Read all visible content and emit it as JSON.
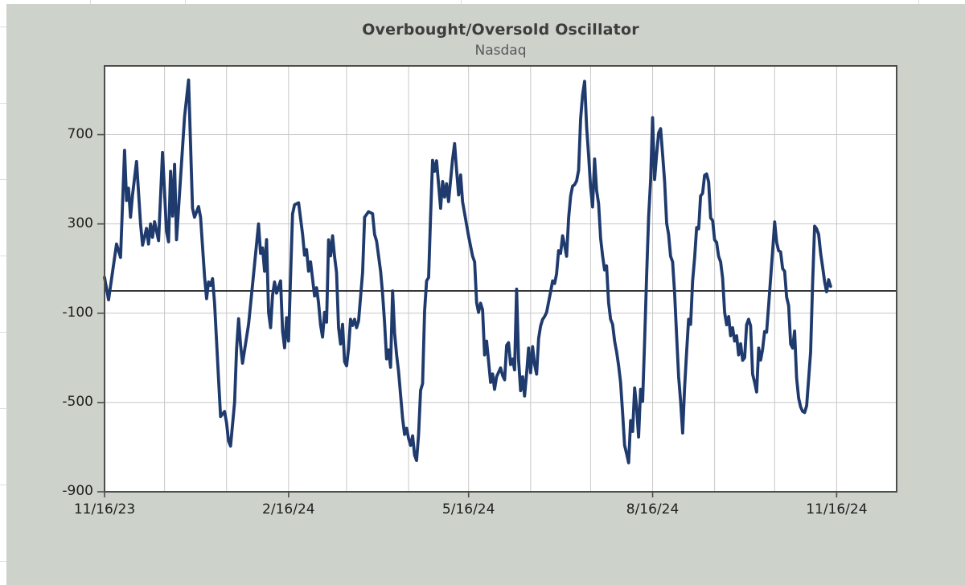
{
  "chart": {
    "background": "#cdd2ca",
    "plot_background": "#ffffff",
    "line_color": "#1f3a6d",
    "grid_color": "#c8c8c8",
    "border_color": "#4d4d4d",
    "zero_line_color": "#1a1a1a",
    "title_color": "#3d3d3d",
    "subtitle_color": "#595959",
    "tick_label_color": "#1f1f1f"
  },
  "chart_data": {
    "type": "line",
    "title": "Overbought/Oversold Oscillator",
    "subtitle": "Nasdaq",
    "legend": "none",
    "grid": "on",
    "x_start_date": "11/16/23",
    "x_ticks": {
      "labels": [
        "11/16/23",
        "2/16/24",
        "5/16/24",
        "8/16/24",
        "11/16/24"
      ],
      "days": [
        0,
        92,
        182,
        274,
        366
      ]
    },
    "x_gridline_days": [
      30,
      61,
      92,
      121,
      152,
      182,
      213,
      243,
      274,
      305,
      335,
      366,
      396
    ],
    "xlim_days": [
      0,
      396
    ],
    "y_ticks": [
      700,
      300,
      -100,
      -500,
      -900
    ],
    "ylim": [
      -900,
      1008
    ],
    "zero_line": 0,
    "series": [
      {
        "name": "Nasdaq",
        "points": [
          [
            0,
            60
          ],
          [
            2,
            -40
          ],
          [
            6,
            210
          ],
          [
            8,
            150
          ],
          [
            10,
            630
          ],
          [
            11,
            405
          ],
          [
            12,
            460
          ],
          [
            13,
            330
          ],
          [
            14,
            430
          ],
          [
            16,
            580
          ],
          [
            18,
            300
          ],
          [
            19,
            205
          ],
          [
            21,
            280
          ],
          [
            22,
            210
          ],
          [
            23,
            300
          ],
          [
            24,
            240
          ],
          [
            25,
            310
          ],
          [
            27,
            225
          ],
          [
            29,
            620
          ],
          [
            31,
            266
          ],
          [
            32,
            220
          ],
          [
            33,
            536
          ],
          [
            34,
            335
          ],
          [
            35,
            567
          ],
          [
            36,
            229
          ],
          [
            40,
            780
          ],
          [
            42,
            945
          ],
          [
            44,
            370
          ],
          [
            45,
            330
          ],
          [
            47,
            378
          ],
          [
            48,
            330
          ],
          [
            50,
            63
          ],
          [
            51,
            -35
          ],
          [
            52,
            40
          ],
          [
            53,
            25
          ],
          [
            54,
            55
          ],
          [
            55,
            -53
          ],
          [
            57,
            -397
          ],
          [
            58,
            -563
          ],
          [
            60,
            -540
          ],
          [
            61,
            -590
          ],
          [
            62,
            -673
          ],
          [
            63,
            -695
          ],
          [
            65,
            -500
          ],
          [
            66,
            -260
          ],
          [
            67,
            -125
          ],
          [
            68,
            -240
          ],
          [
            69,
            -324
          ],
          [
            72,
            -150
          ],
          [
            74,
            30
          ],
          [
            77,
            300
          ],
          [
            78,
            168
          ],
          [
            79,
            193
          ],
          [
            80,
            88
          ],
          [
            81,
            230
          ],
          [
            82,
            -96
          ],
          [
            83,
            -165
          ],
          [
            84,
            -20
          ],
          [
            85,
            40
          ],
          [
            86,
            -10
          ],
          [
            88,
            45
          ],
          [
            89,
            -180
          ],
          [
            90,
            -255
          ],
          [
            91,
            -120
          ],
          [
            92,
            -225
          ],
          [
            94,
            345
          ],
          [
            95,
            386
          ],
          [
            97,
            395
          ],
          [
            99,
            253
          ],
          [
            100,
            160
          ],
          [
            101,
            185
          ],
          [
            102,
            88
          ],
          [
            103,
            130
          ],
          [
            105,
            -23
          ],
          [
            106,
            14
          ],
          [
            107,
            -53
          ],
          [
            108,
            -152
          ],
          [
            109,
            -207
          ],
          [
            110,
            -96
          ],
          [
            111,
            -140
          ],
          [
            112,
            229
          ],
          [
            113,
            157
          ],
          [
            114,
            247
          ],
          [
            115,
            155
          ],
          [
            116,
            82
          ],
          [
            117,
            -164
          ],
          [
            118,
            -238
          ],
          [
            119,
            -150
          ],
          [
            120,
            -317
          ],
          [
            121,
            -336
          ],
          [
            122,
            -256
          ],
          [
            123,
            -127
          ],
          [
            124,
            -155
          ],
          [
            125,
            -127
          ],
          [
            126,
            -165
          ],
          [
            127,
            -135
          ],
          [
            129,
            82
          ],
          [
            130,
            330
          ],
          [
            132,
            355
          ],
          [
            134,
            346
          ],
          [
            135,
            253
          ],
          [
            136,
            223
          ],
          [
            137,
            155
          ],
          [
            138,
            88
          ],
          [
            139,
            -10
          ],
          [
            140,
            -140
          ],
          [
            141,
            -305
          ],
          [
            142,
            -264
          ],
          [
            143,
            -342
          ],
          [
            144,
            0
          ],
          [
            145,
            -189
          ],
          [
            146,
            -287
          ],
          [
            147,
            -360
          ],
          [
            149,
            -569
          ],
          [
            150,
            -643
          ],
          [
            151,
            -615
          ],
          [
            152,
            -661
          ],
          [
            153,
            -692
          ],
          [
            154,
            -649
          ],
          [
            155,
            -735
          ],
          [
            156,
            -760
          ],
          [
            157,
            -645
          ],
          [
            158,
            -446
          ],
          [
            159,
            -415
          ],
          [
            160,
            -90
          ],
          [
            161,
            45
          ],
          [
            162,
            60
          ],
          [
            163,
            330
          ],
          [
            164,
            585
          ],
          [
            165,
            536
          ],
          [
            166,
            583
          ],
          [
            168,
            370
          ],
          [
            169,
            490
          ],
          [
            170,
            420
          ],
          [
            171,
            480
          ],
          [
            172,
            400
          ],
          [
            174,
            590
          ],
          [
            175,
            660
          ],
          [
            176,
            540
          ],
          [
            177,
            430
          ],
          [
            178,
            520
          ],
          [
            179,
            400
          ],
          [
            182,
            245
          ],
          [
            184,
            155
          ],
          [
            185,
            130
          ],
          [
            186,
            -53
          ],
          [
            187,
            -96
          ],
          [
            188,
            -55
          ],
          [
            189,
            -85
          ],
          [
            190,
            -287
          ],
          [
            191,
            -225
          ],
          [
            193,
            -410
          ],
          [
            194,
            -372
          ],
          [
            195,
            -441
          ],
          [
            196,
            -385
          ],
          [
            198,
            -345
          ],
          [
            199,
            -379
          ],
          [
            200,
            -398
          ],
          [
            201,
            -244
          ],
          [
            202,
            -232
          ],
          [
            203,
            -330
          ],
          [
            204,
            -305
          ],
          [
            205,
            -354
          ],
          [
            206,
            8
          ],
          [
            207,
            -311
          ],
          [
            208,
            -447
          ],
          [
            209,
            -385
          ],
          [
            210,
            -471
          ],
          [
            211,
            -373
          ],
          [
            212,
            -256
          ],
          [
            213,
            -367
          ],
          [
            214,
            -250
          ],
          [
            215,
            -330
          ],
          [
            216,
            -373
          ],
          [
            217,
            -213
          ],
          [
            218,
            -158
          ],
          [
            219,
            -128
          ],
          [
            220,
            -115
          ],
          [
            221,
            -96
          ],
          [
            223,
            -4
          ],
          [
            224,
            45
          ],
          [
            225,
            33
          ],
          [
            226,
            76
          ],
          [
            227,
            180
          ],
          [
            228,
            168
          ],
          [
            229,
            247
          ],
          [
            230,
            204
          ],
          [
            231,
            155
          ],
          [
            232,
            327
          ],
          [
            233,
            425
          ],
          [
            234,
            469
          ],
          [
            235,
            476
          ],
          [
            236,
            493
          ],
          [
            237,
            540
          ],
          [
            238,
            770
          ],
          [
            239,
            880
          ],
          [
            240,
            939
          ],
          [
            241,
            733
          ],
          [
            242,
            610
          ],
          [
            243,
            466
          ],
          [
            244,
            376
          ],
          [
            245,
            591
          ],
          [
            246,
            450
          ],
          [
            247,
            390
          ],
          [
            248,
            235
          ],
          [
            249,
            155
          ],
          [
            250,
            94
          ],
          [
            251,
            112
          ],
          [
            252,
            -53
          ],
          [
            253,
            -127
          ],
          [
            254,
            -150
          ],
          [
            255,
            -225
          ],
          [
            256,
            -274
          ],
          [
            257,
            -336
          ],
          [
            258,
            -410
          ],
          [
            259,
            -545
          ],
          [
            260,
            -692
          ],
          [
            261,
            -729
          ],
          [
            262,
            -770
          ],
          [
            263,
            -581
          ],
          [
            264,
            -630
          ],
          [
            265,
            -435
          ],
          [
            266,
            -520
          ],
          [
            267,
            -655
          ],
          [
            268,
            -441
          ],
          [
            269,
            -495
          ],
          [
            270,
            -225
          ],
          [
            271,
            69
          ],
          [
            272,
            333
          ],
          [
            273,
            499
          ],
          [
            274,
            776
          ],
          [
            275,
            499
          ],
          [
            276,
            610
          ],
          [
            277,
            708
          ],
          [
            278,
            727
          ],
          [
            279,
            610
          ],
          [
            280,
            489
          ],
          [
            281,
            303
          ],
          [
            282,
            253
          ],
          [
            283,
            155
          ],
          [
            284,
            130
          ],
          [
            285,
            -10
          ],
          [
            286,
            -201
          ],
          [
            287,
            -385
          ],
          [
            288,
            -496
          ],
          [
            289,
            -637
          ],
          [
            290,
            -435
          ],
          [
            291,
            -275
          ],
          [
            292,
            -127
          ],
          [
            293,
            -150
          ],
          [
            294,
            45
          ],
          [
            295,
            149
          ],
          [
            296,
            284
          ],
          [
            297,
            278
          ],
          [
            298,
            425
          ],
          [
            299,
            437
          ],
          [
            300,
            518
          ],
          [
            301,
            524
          ],
          [
            302,
            488
          ],
          [
            303,
            327
          ],
          [
            304,
            315
          ],
          [
            305,
            229
          ],
          [
            306,
            217
          ],
          [
            307,
            155
          ],
          [
            308,
            130
          ],
          [
            309,
            57
          ],
          [
            310,
            -96
          ],
          [
            311,
            -152
          ],
          [
            312,
            -115
          ],
          [
            313,
            -201
          ],
          [
            314,
            -165
          ],
          [
            315,
            -225
          ],
          [
            316,
            -201
          ],
          [
            317,
            -287
          ],
          [
            318,
            -237
          ],
          [
            319,
            -311
          ],
          [
            320,
            -299
          ],
          [
            321,
            -152
          ],
          [
            322,
            -127
          ],
          [
            323,
            -157
          ],
          [
            324,
            -373
          ],
          [
            325,
            -410
          ],
          [
            326,
            -453
          ],
          [
            327,
            -256
          ],
          [
            328,
            -310
          ],
          [
            329,
            -262
          ],
          [
            330,
            -182
          ],
          [
            331,
            -185
          ],
          [
            332,
            -66
          ],
          [
            333,
            57
          ],
          [
            334,
            180
          ],
          [
            335,
            309
          ],
          [
            336,
            217
          ],
          [
            337,
            180
          ],
          [
            338,
            175
          ],
          [
            339,
            100
          ],
          [
            340,
            88
          ],
          [
            341,
            -28
          ],
          [
            342,
            -66
          ],
          [
            343,
            -238
          ],
          [
            344,
            -256
          ],
          [
            345,
            -180
          ],
          [
            346,
            -390
          ],
          [
            347,
            -480
          ],
          [
            348,
            -520
          ],
          [
            349,
            -540
          ],
          [
            350,
            -545
          ],
          [
            351,
            -514
          ],
          [
            353,
            -275
          ],
          [
            354,
            33
          ],
          [
            355,
            290
          ],
          [
            356,
            278
          ],
          [
            357,
            253
          ],
          [
            358,
            168
          ],
          [
            359,
            106
          ],
          [
            360,
            40
          ],
          [
            361,
            -4
          ],
          [
            362,
            50
          ],
          [
            363,
            20
          ]
        ]
      }
    ]
  }
}
